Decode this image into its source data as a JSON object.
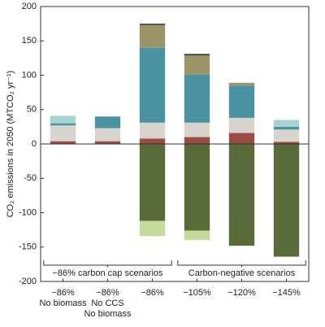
{
  "chart_data": {
    "type": "stacked_bar",
    "y_label": "CO₂ emissions in 2050 (MTCO₂ yr⁻¹)",
    "categories": [
      [
        "−86%",
        "No biomass"
      ],
      [
        "−86%",
        "No CCS",
        "No biomass"
      ],
      [
        "−86%"
      ],
      [
        "−105%"
      ],
      [
        "−120%"
      ],
      [
        "−145%"
      ]
    ],
    "series": [
      {
        "color": "#9b4a44",
        "values": [
          4,
          4,
          8,
          10,
          16,
          3
        ]
      },
      {
        "color": "#d8d5cf",
        "values": [
          23,
          19,
          23,
          21,
          22,
          18
        ]
      },
      {
        "color": "#4b93a3",
        "values": [
          3,
          17,
          109,
          70,
          47,
          4
        ]
      },
      {
        "color": "#a6d3d3",
        "values": [
          11,
          null,
          null,
          null,
          null,
          10
        ]
      },
      {
        "color": "#9a9468",
        "values": [
          null,
          null,
          33,
          28,
          4,
          null
        ]
      },
      {
        "color": "#3d3a30",
        "values": [
          null,
          null,
          2,
          2,
          null,
          null
        ]
      },
      {
        "color": "#5a6b3a",
        "values": [
          null,
          null,
          -112,
          -126,
          -148,
          -164
        ]
      },
      {
        "color": "#c5da9a",
        "values": [
          null,
          null,
          -22,
          -14,
          null,
          null
        ]
      }
    ],
    "annotations": [
      {
        "text": "−86% carbon cap scenarios",
        "from": 0,
        "to": 2
      },
      {
        "text": "Carbon-negative scenarios",
        "from": 3,
        "to": 5
      }
    ],
    "ylim": [
      -200,
      200
    ],
    "yticks": [
      -200,
      -150,
      -100,
      -50,
      0,
      50,
      100,
      150,
      200
    ]
  }
}
